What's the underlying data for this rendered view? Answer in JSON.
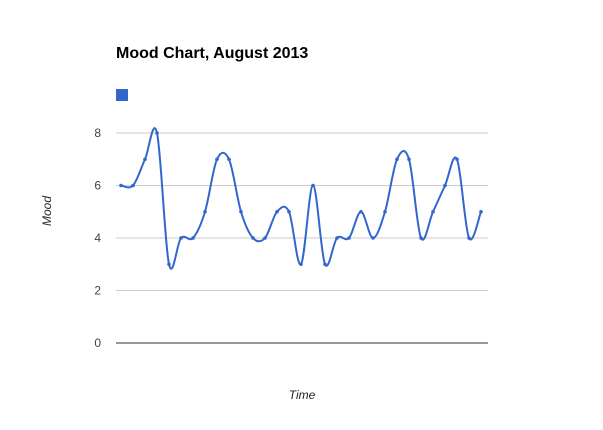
{
  "chart_data": {
    "type": "line",
    "title": "Mood Chart, August 2013",
    "xlabel": "Time",
    "ylabel": "Mood",
    "ylim": [
      0,
      8
    ],
    "yticks": [
      "0",
      "2",
      "4",
      "6",
      "8"
    ],
    "grid": true,
    "legend": "top-left",
    "series": [
      {
        "name": "",
        "color": "#3366cc",
        "values": [
          6,
          6,
          7,
          8,
          3,
          4,
          4,
          5,
          7,
          7,
          5,
          4,
          4,
          5,
          5,
          3,
          6,
          3,
          4,
          4,
          5,
          4,
          5,
          7,
          7,
          4,
          5,
          6,
          7,
          4,
          5
        ]
      }
    ]
  }
}
